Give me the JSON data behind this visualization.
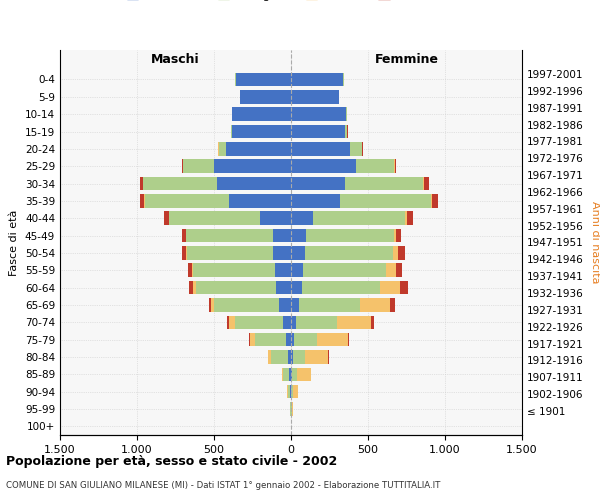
{
  "age_groups": [
    "100+",
    "95-99",
    "90-94",
    "85-89",
    "80-84",
    "75-79",
    "70-74",
    "65-69",
    "60-64",
    "55-59",
    "50-54",
    "45-49",
    "40-44",
    "35-39",
    "30-34",
    "25-29",
    "20-24",
    "15-19",
    "10-14",
    "5-9",
    "0-4"
  ],
  "birth_years": [
    "≤ 1901",
    "1902-1906",
    "1907-1911",
    "1912-1916",
    "1917-1921",
    "1922-1926",
    "1927-1931",
    "1932-1936",
    "1937-1941",
    "1942-1946",
    "1947-1951",
    "1952-1956",
    "1957-1961",
    "1962-1966",
    "1967-1971",
    "1972-1976",
    "1977-1981",
    "1982-1986",
    "1987-1991",
    "1992-1996",
    "1997-2001"
  ],
  "maschi": {
    "celibi": [
      0,
      2,
      5,
      10,
      20,
      35,
      55,
      80,
      100,
      105,
      115,
      120,
      200,
      400,
      480,
      500,
      420,
      380,
      380,
      330,
      360
    ],
    "coniugati": [
      0,
      3,
      15,
      40,
      110,
      200,
      310,
      420,
      520,
      530,
      560,
      560,
      590,
      550,
      480,
      200,
      50,
      10,
      5,
      2,
      2
    ],
    "vedovi": [
      0,
      1,
      5,
      10,
      20,
      30,
      40,
      20,
      15,
      10,
      5,
      5,
      3,
      2,
      2,
      1,
      1,
      0,
      0,
      0,
      0
    ],
    "divorziati": [
      0,
      0,
      0,
      0,
      2,
      5,
      10,
      15,
      30,
      25,
      30,
      20,
      30,
      30,
      20,
      5,
      5,
      2,
      0,
      0,
      0
    ]
  },
  "femmine": {
    "nubili": [
      0,
      2,
      3,
      8,
      12,
      18,
      30,
      55,
      70,
      80,
      90,
      100,
      140,
      320,
      350,
      420,
      380,
      350,
      360,
      310,
      340
    ],
    "coniugate": [
      0,
      3,
      10,
      30,
      80,
      150,
      270,
      390,
      510,
      540,
      570,
      570,
      600,
      590,
      510,
      250,
      80,
      15,
      5,
      2,
      2
    ],
    "vedove": [
      1,
      5,
      30,
      90,
      150,
      200,
      220,
      200,
      130,
      60,
      35,
      15,
      10,
      5,
      5,
      3,
      2,
      1,
      0,
      0,
      0
    ],
    "divorziate": [
      0,
      0,
      0,
      2,
      5,
      10,
      20,
      30,
      50,
      40,
      45,
      30,
      40,
      40,
      30,
      10,
      5,
      2,
      0,
      0,
      0
    ]
  },
  "colors": {
    "celibi_nubili": "#4472C4",
    "coniugati": "#AECF8B",
    "vedovi": "#F5C26B",
    "divorziati": "#C0392B"
  },
  "xlim": 1500,
  "title": "Popolazione per età, sesso e stato civile - 2002",
  "subtitle": "COMUNE DI SAN GIULIANO MILANESE (MI) - Dati ISTAT 1° gennaio 2002 - Elaborazione TUTTITALIA.IT",
  "ylabel": "Fasce di età",
  "ylabel_right": "Anni di nascita",
  "xlabel_maschi": "Maschi",
  "xlabel_femmine": "Femmine",
  "bg_color": "#FFFFFF",
  "xtick_labels": [
    "1.500",
    "1.000",
    "500",
    "0",
    "500",
    "1.000",
    "1.500"
  ]
}
